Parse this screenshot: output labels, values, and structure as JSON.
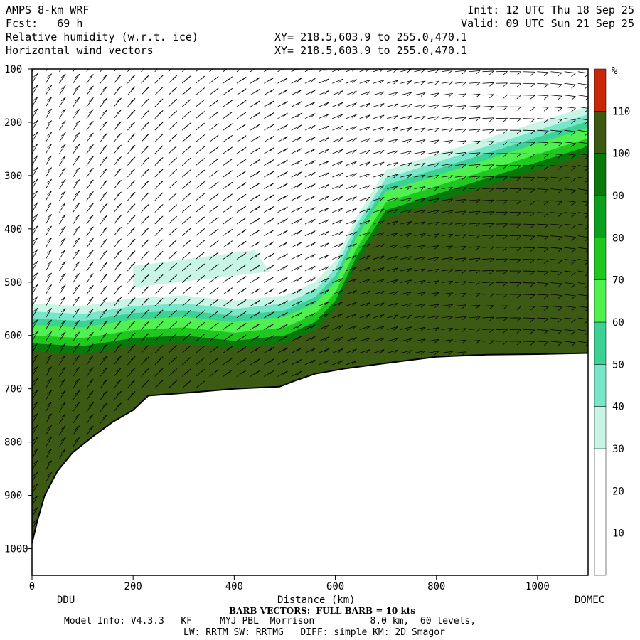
{
  "header": {
    "model": "AMPS 8-km WRF",
    "fcst": "Fcst:   69 h",
    "init": "Init: 12 UTC Thu 18 Sep 25",
    "valid": "Valid: 09 UTC Sun 21 Sep 25",
    "field1": "Relative humidity (w.r.t. ice)",
    "field2": "Horizontal wind vectors",
    "xy1": "XY= 218.5,603.9 to 255.0,470.1",
    "xy2": "XY= 218.5,603.9 to 255.0,470.1"
  },
  "footer": {
    "barb_note": "BARB VECTORS:  FULL BARB = 10 kts",
    "model_info": "Model Info: V4.3.3   KF     MYJ PBL  Morrison          8.0 km,  60 levels,",
    "physics": "LW: RRTM SW: RRTMG   DIFF: simple KM: 2D Smagor"
  },
  "chart_data": {
    "type": "heatmap",
    "title": "Relative humidity (w.r.t. ice)",
    "xlabel": "Distance (km)",
    "ylabel": "",
    "xlim": [
      0,
      1100
    ],
    "ylim": [
      1050,
      100
    ],
    "x_ticks": [
      0,
      200,
      400,
      600,
      800,
      1000
    ],
    "y_ticks": [
      100,
      200,
      300,
      400,
      500,
      600,
      700,
      800,
      900,
      1000
    ],
    "x_endpoints": {
      "left": "DDU",
      "right": "DOMEC"
    },
    "colorbar": {
      "unit": "%",
      "levels": [
        10,
        20,
        30,
        40,
        50,
        60,
        70,
        80,
        90,
        100,
        110
      ],
      "colors": [
        "#ffffff",
        "#ffffff",
        "#ffffff",
        "#c8f5e6",
        "#78e6c8",
        "#3cd296",
        "#50f050",
        "#1ec81e",
        "#0aa01e",
        "#0a780a",
        "#3c5a14",
        "#c82808"
      ]
    },
    "terrain_pressure": [
      {
        "x": 0,
        "p": 990
      },
      {
        "x": 10,
        "p": 950
      },
      {
        "x": 25,
        "p": 900
      },
      {
        "x": 50,
        "p": 855
      },
      {
        "x": 80,
        "p": 820
      },
      {
        "x": 120,
        "p": 790
      },
      {
        "x": 160,
        "p": 762
      },
      {
        "x": 200,
        "p": 740
      },
      {
        "x": 230,
        "p": 713
      },
      {
        "x": 300,
        "p": 708
      },
      {
        "x": 400,
        "p": 700
      },
      {
        "x": 490,
        "p": 696
      },
      {
        "x": 520,
        "p": 685
      },
      {
        "x": 560,
        "p": 672
      },
      {
        "x": 620,
        "p": 662
      },
      {
        "x": 700,
        "p": 652
      },
      {
        "x": 800,
        "p": 640
      },
      {
        "x": 900,
        "p": 636
      },
      {
        "x": 1000,
        "p": 635
      },
      {
        "x": 1100,
        "p": 633
      }
    ],
    "moist_top_pressure": [
      {
        "x": 0,
        "p": 580
      },
      {
        "x": 100,
        "p": 585
      },
      {
        "x": 200,
        "p": 570
      },
      {
        "x": 300,
        "p": 565
      },
      {
        "x": 400,
        "p": 575
      },
      {
        "x": 500,
        "p": 565
      },
      {
        "x": 560,
        "p": 540
      },
      {
        "x": 600,
        "p": 500
      },
      {
        "x": 640,
        "p": 420
      },
      {
        "x": 700,
        "p": 330
      },
      {
        "x": 800,
        "p": 300
      },
      {
        "x": 900,
        "p": 270
      },
      {
        "x": 1000,
        "p": 240
      },
      {
        "x": 1100,
        "p": 210
      }
    ]
  }
}
